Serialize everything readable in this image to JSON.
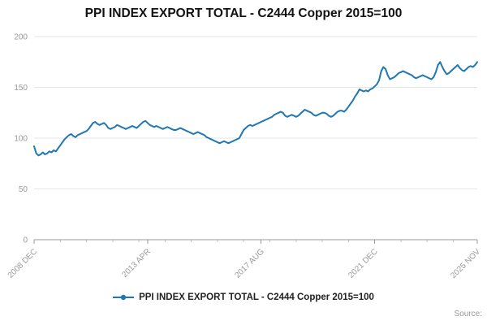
{
  "title": "PPI INDEX EXPORT TOTAL - C2444 Copper 2015=100",
  "legend": {
    "label": "PPI INDEX EXPORT TOTAL - C2444 Copper 2015=100"
  },
  "source_label": "Source:",
  "chart_data": {
    "type": "line",
    "title": "PPI INDEX EXPORT TOTAL - C2444 Copper 2015=100",
    "xlabel": "",
    "ylabel": "",
    "ylim": [
      0,
      200
    ],
    "y_ticks": [
      0,
      50,
      100,
      150,
      200
    ],
    "grid": true,
    "legend_position": "bottom",
    "x_start": "2008 DEC",
    "x_end": "2025 NOV",
    "x_frequency": "monthly",
    "x_tick_labels": [
      {
        "label": "2008 DEC",
        "index": 0
      },
      {
        "label": "2013 APR",
        "index": 52
      },
      {
        "label": "2017 AUG",
        "index": 104
      },
      {
        "label": "2021 DEC",
        "index": 156
      },
      {
        "label": "2025 NOV",
        "index": 203
      }
    ],
    "series": [
      {
        "name": "PPI INDEX EXPORT TOTAL - C2444 Copper 2015=100",
        "color": "#1f77b4",
        "values": [
          92,
          85,
          83,
          84,
          86,
          84,
          85,
          87,
          86,
          88,
          87,
          90,
          93,
          96,
          99,
          101,
          103,
          104,
          102,
          101,
          103,
          104,
          105,
          106,
          107,
          109,
          112,
          115,
          116,
          114,
          113,
          114,
          115,
          113,
          110,
          109,
          110,
          111,
          113,
          112,
          111,
          110,
          109,
          110,
          111,
          112,
          111,
          110,
          112,
          114,
          116,
          117,
          115,
          113,
          112,
          111,
          112,
          111,
          110,
          109,
          110,
          111,
          110,
          109,
          108,
          108,
          109,
          110,
          109,
          108,
          107,
          106,
          105,
          104,
          105,
          106,
          105,
          104,
          103,
          101,
          100,
          99,
          98,
          97,
          96,
          95,
          96,
          97,
          96,
          95,
          96,
          97,
          98,
          99,
          100,
          104,
          108,
          110,
          112,
          113,
          112,
          113,
          114,
          115,
          116,
          117,
          118,
          119,
          120,
          121,
          123,
          124,
          125,
          126,
          125,
          122,
          121,
          122,
          123,
          122,
          121,
          122,
          124,
          126,
          128,
          127,
          126,
          125,
          123,
          122,
          123,
          124,
          125,
          125,
          124,
          122,
          121,
          122,
          124,
          126,
          127,
          127,
          126,
          128,
          131,
          134,
          137,
          141,
          144,
          148,
          147,
          146,
          147,
          146,
          148,
          149,
          151,
          153,
          157,
          166,
          170,
          168,
          162,
          158,
          159,
          160,
          162,
          164,
          165,
          166,
          165,
          164,
          163,
          162,
          160,
          159,
          160,
          161,
          162,
          161,
          160,
          159,
          158,
          160,
          165,
          172,
          175,
          170,
          166,
          163,
          164,
          166,
          168,
          170,
          172,
          169,
          167,
          166,
          168,
          170,
          171,
          170,
          172,
          175
        ]
      }
    ],
    "axis_color": "#999999",
    "grid_color": "#e6e6e6",
    "tick_label_color": "#999999"
  }
}
